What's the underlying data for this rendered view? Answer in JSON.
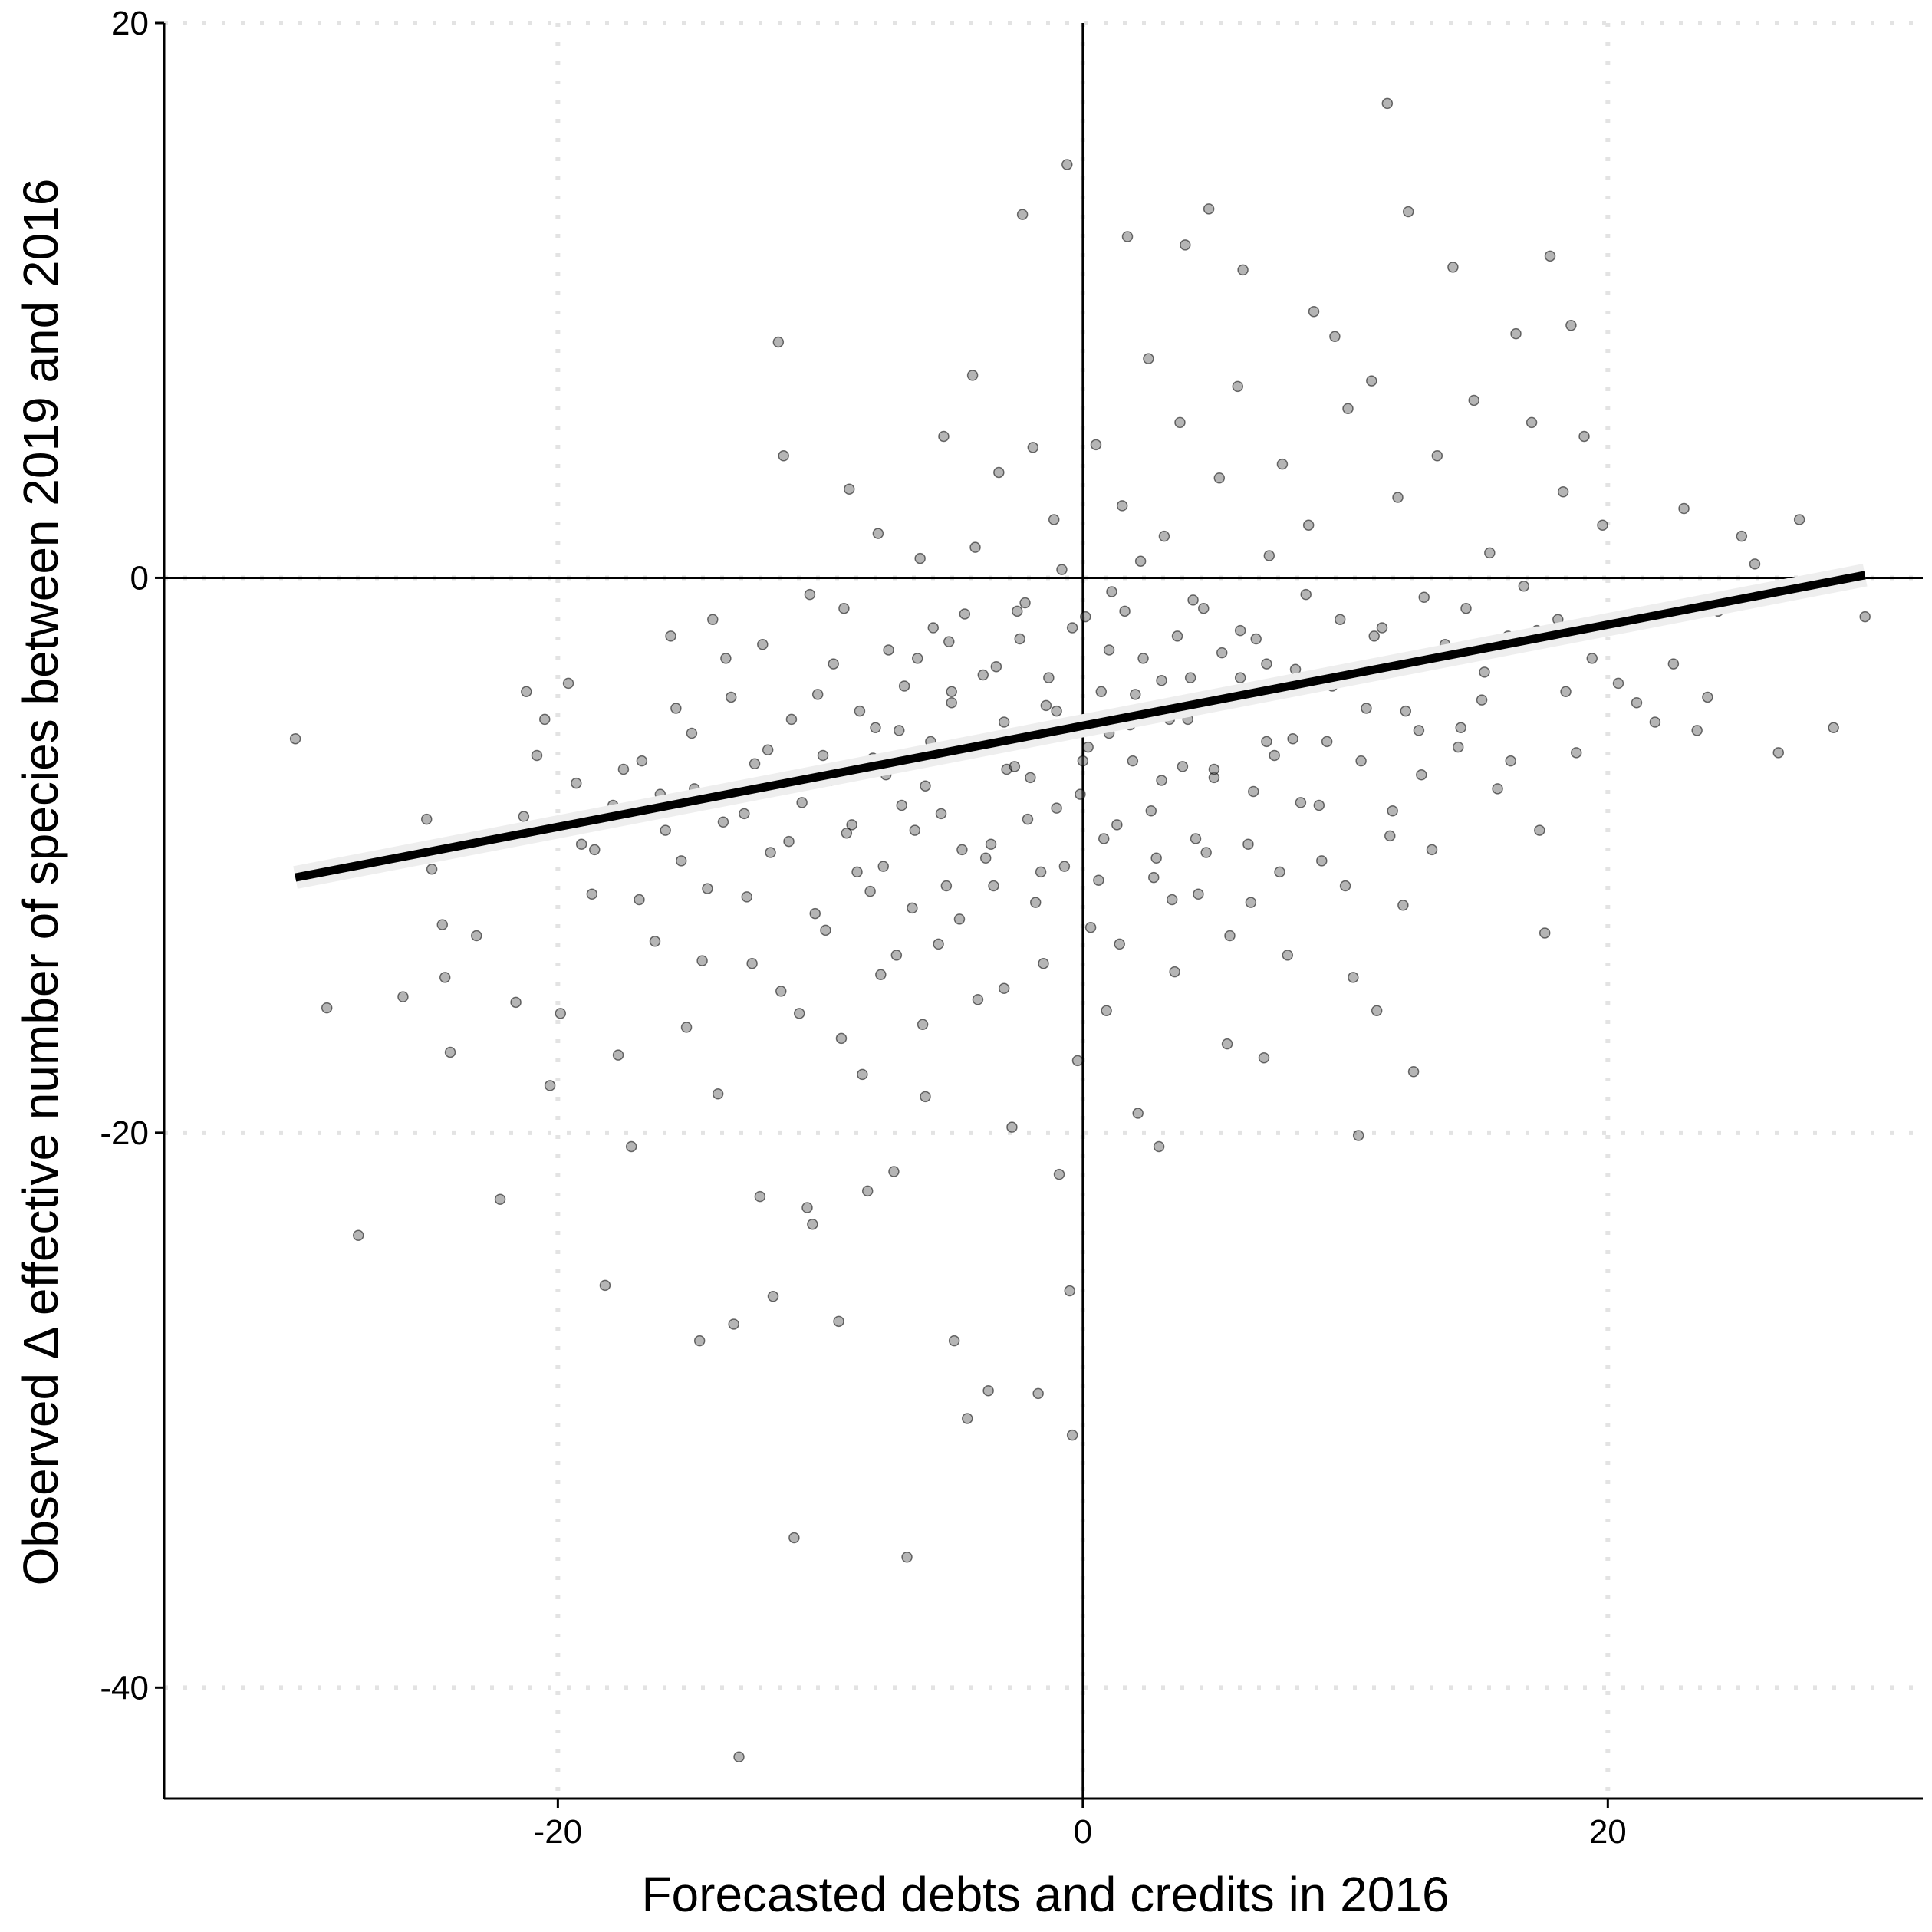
{
  "chart_data": {
    "type": "scatter",
    "xlabel": "Forecasted debts and credits in 2016",
    "ylabel": "Observed Δ effective number of species between 2019 and 2016",
    "xlim": [
      -35,
      32
    ],
    "ylim": [
      -44,
      20
    ],
    "x_ticks": [
      -20,
      0,
      20
    ],
    "y_ticks": [
      20,
      0,
      -20,
      -40
    ],
    "x_tick_labels": [
      "-20",
      "0",
      "20"
    ],
    "y_tick_labels": [
      "20",
      "0",
      "-20",
      "-40"
    ],
    "grid": "dotted major gridlines",
    "reference_lines": {
      "x": 0,
      "y": 0
    },
    "trend_line": {
      "x": [
        -30,
        29.8
      ],
      "y": [
        -10.8,
        0.1
      ]
    },
    "points": [
      [
        -30,
        -5.8
      ],
      [
        -28.8,
        -15.5
      ],
      [
        -27.6,
        -23.7
      ],
      [
        -25.9,
        -15.1
      ],
      [
        -25,
        -8.7
      ],
      [
        -24.8,
        -10.5
      ],
      [
        -24.4,
        -12.5
      ],
      [
        -24.3,
        -14.4
      ],
      [
        -24.1,
        -17.1
      ],
      [
        -23.1,
        -12.9
      ],
      [
        -22.8,
        -9.5
      ],
      [
        -22.2,
        -22.4
      ],
      [
        -21.6,
        -15.3
      ],
      [
        -21.3,
        -8.6
      ],
      [
        -21.2,
        -4.1
      ],
      [
        -20.8,
        -6.4
      ],
      [
        -20.3,
        -18.3
      ],
      [
        -19.9,
        -15.7
      ],
      [
        -19.6,
        -3.8
      ],
      [
        -19.1,
        -9.6
      ],
      [
        -18.7,
        -11.4
      ],
      [
        -18.2,
        -25.5
      ],
      [
        -17.9,
        -8.2
      ],
      [
        -17.7,
        -17.2
      ],
      [
        -17.2,
        -20.5
      ],
      [
        -16.8,
        -6.6
      ],
      [
        -16.3,
        -13.1
      ],
      [
        -15.9,
        -9.1
      ],
      [
        -15.5,
        -4.7
      ],
      [
        -15.1,
        -16.2
      ],
      [
        -14.8,
        -7.6
      ],
      [
        -14.6,
        -27.5
      ],
      [
        -14.3,
        -11.2
      ],
      [
        -13.9,
        -18.6
      ],
      [
        -13.6,
        -2.9
      ],
      [
        -13.3,
        -26.9
      ],
      [
        -13.1,
        -42.5
      ],
      [
        -12.9,
        -8.5
      ],
      [
        -12.6,
        -13.9
      ],
      [
        -12.3,
        -22.3
      ],
      [
        -12,
        -6.2
      ],
      [
        -11.8,
        -25.9
      ],
      [
        -11.6,
        8.5
      ],
      [
        -11.4,
        4.4
      ],
      [
        -11.2,
        -9.5
      ],
      [
        -11,
        -34.6
      ],
      [
        -10.8,
        -15.7
      ],
      [
        -10.5,
        -22.7
      ],
      [
        -10.3,
        -23.3
      ],
      [
        -10.1,
        -4.2
      ],
      [
        -9.8,
        -12.7
      ],
      [
        -9.6,
        -7.3
      ],
      [
        -9.3,
        -26.8
      ],
      [
        -9.1,
        -1.1
      ],
      [
        -8.9,
        3.2
      ],
      [
        -8.6,
        -10.6
      ],
      [
        -8.4,
        -17.9
      ],
      [
        -8.2,
        -22.1
      ],
      [
        -7.9,
        -5.4
      ],
      [
        -7.7,
        -14.3
      ],
      [
        -7.4,
        -2.6
      ],
      [
        -7.2,
        -21.4
      ],
      [
        -6.9,
        -8.2
      ],
      [
        -6.7,
        -35.3
      ],
      [
        -6.5,
        -11.9
      ],
      [
        -6.2,
        0.7
      ],
      [
        -6,
        -18.7
      ],
      [
        -5.8,
        -5.9
      ],
      [
        -5.5,
        -13.2
      ],
      [
        -5.3,
        5.1
      ],
      [
        -5.1,
        -2.3
      ],
      [
        -4.9,
        -27.5
      ],
      [
        -4.6,
        -9.8
      ],
      [
        -4.4,
        -30.3
      ],
      [
        -4.2,
        7.3
      ],
      [
        -4,
        -15.2
      ],
      [
        -3.8,
        -3.5
      ],
      [
        -3.6,
        -29.3
      ],
      [
        -3.4,
        -11.1
      ],
      [
        -3.2,
        3.8
      ],
      [
        -2.9,
        -6.9
      ],
      [
        -2.7,
        -19.8
      ],
      [
        -2.5,
        -1.2
      ],
      [
        -2.3,
        13.1
      ],
      [
        -2.1,
        -8.7
      ],
      [
        -1.9,
        4.7
      ],
      [
        -1.7,
        -29.4
      ],
      [
        -1.5,
        -13.9
      ],
      [
        -1.3,
        -3.6
      ],
      [
        -1.1,
        2.1
      ],
      [
        -0.9,
        -21.5
      ],
      [
        -0.7,
        -10.4
      ],
      [
        -0.6,
        14.9
      ],
      [
        -0.5,
        -25.7
      ],
      [
        -0.4,
        -30.9
      ],
      [
        -0.3,
        -5.2
      ],
      [
        -0.2,
        -17.4
      ],
      [
        -0.1,
        -7.8
      ],
      [
        0.1,
        -1.4
      ],
      [
        0.3,
        -12.6
      ],
      [
        0.5,
        4.8
      ],
      [
        0.7,
        -4.1
      ],
      [
        0.9,
        -15.6
      ],
      [
        1.1,
        -0.5
      ],
      [
        1.3,
        -8.9
      ],
      [
        1.5,
        2.6
      ],
      [
        1.7,
        12.3
      ],
      [
        1.9,
        -6.6
      ],
      [
        2.1,
        -19.3
      ],
      [
        2.3,
        -2.9
      ],
      [
        2.5,
        7.9
      ],
      [
        2.7,
        -10.8
      ],
      [
        2.9,
        -20.5
      ],
      [
        3.1,
        1.5
      ],
      [
        3.3,
        -5.1
      ],
      [
        3.5,
        -14.2
      ],
      [
        3.7,
        5.6
      ],
      [
        3.9,
        12
      ],
      [
        4.1,
        -3.6
      ],
      [
        4.3,
        -9.4
      ],
      [
        4.6,
        -1.1
      ],
      [
        4.8,
        13.3
      ],
      [
        5,
        -7.2
      ],
      [
        5.2,
        3.6
      ],
      [
        5.5,
        -16.8
      ],
      [
        5.7,
        -4.4
      ],
      [
        5.9,
        6.9
      ],
      [
        6.1,
        11.1
      ],
      [
        6.4,
        -11.7
      ],
      [
        6.6,
        -2.2
      ],
      [
        6.9,
        -17.3
      ],
      [
        7.1,
        0.8
      ],
      [
        7.3,
        -6.4
      ],
      [
        7.6,
        4.1
      ],
      [
        7.8,
        -13.6
      ],
      [
        8.1,
        -3.3
      ],
      [
        8.3,
        -8.1
      ],
      [
        8.6,
        1.9
      ],
      [
        8.8,
        9.6
      ],
      [
        9.1,
        -10.2
      ],
      [
        9.3,
        -5.9
      ],
      [
        9.6,
        8.7
      ],
      [
        9.8,
        -1.5
      ],
      [
        10.1,
        6.1
      ],
      [
        10.3,
        -14.4
      ],
      [
        10.5,
        -20.1
      ],
      [
        10.8,
        -4.7
      ],
      [
        11,
        7.1
      ],
      [
        11.2,
        -15.6
      ],
      [
        11.4,
        -1.8
      ],
      [
        11.6,
        17.1
      ],
      [
        11.8,
        -8.4
      ],
      [
        12,
        2.9
      ],
      [
        12.2,
        -11.8
      ],
      [
        12.4,
        13.2
      ],
      [
        12.6,
        -17.8
      ],
      [
        12.8,
        -5.5
      ],
      [
        13,
        -0.7
      ],
      [
        13.3,
        -9.8
      ],
      [
        13.5,
        4.4
      ],
      [
        13.8,
        -2.4
      ],
      [
        14.1,
        11.2
      ],
      [
        14.3,
        -6.1
      ],
      [
        14.6,
        -1.1
      ],
      [
        14.9,
        6.4
      ],
      [
        15.2,
        -4.4
      ],
      [
        15.5,
        0.9
      ],
      [
        15.8,
        -7.6
      ],
      [
        16.2,
        -2.1
      ],
      [
        16.5,
        8.8
      ],
      [
        16.8,
        -0.3
      ],
      [
        17.1,
        5.6
      ],
      [
        17.4,
        -9.1
      ],
      [
        17.6,
        -12.8
      ],
      [
        17.8,
        11.6
      ],
      [
        18.1,
        -1.5
      ],
      [
        18.3,
        3.1
      ],
      [
        18.6,
        9.1
      ],
      [
        18.8,
        -6.3
      ],
      [
        19.1,
        5.1
      ],
      [
        19.4,
        -2.9
      ],
      [
        19.8,
        1.9
      ],
      [
        20.4,
        -3.8
      ],
      [
        21.1,
        -4.5
      ],
      [
        21.8,
        -5.2
      ],
      [
        22.5,
        -3.1
      ],
      [
        22.9,
        2.5
      ],
      [
        23.4,
        -5.5
      ],
      [
        23.8,
        -4.3
      ],
      [
        24.2,
        -1.2
      ],
      [
        25.1,
        1.5
      ],
      [
        25.6,
        0.5
      ],
      [
        26.5,
        -6.3
      ],
      [
        27.3,
        2.1
      ],
      [
        28.6,
        -5.4
      ],
      [
        29.8,
        -1.4
      ],
      [
        -20.5,
        -5.1
      ],
      [
        -19.3,
        -7.4
      ],
      [
        -18.6,
        -9.8
      ],
      [
        -17.5,
        -6.9
      ],
      [
        -16.9,
        -11.6
      ],
      [
        -16.1,
        -7.8
      ],
      [
        -15.7,
        -2.1
      ],
      [
        -15.3,
        -10.2
      ],
      [
        -14.9,
        -5.6
      ],
      [
        -14.5,
        -13.8
      ],
      [
        -14.1,
        -1.5
      ],
      [
        -13.7,
        -8.8
      ],
      [
        -13.4,
        -4.3
      ],
      [
        -12.8,
        -11.5
      ],
      [
        -12.5,
        -6.7
      ],
      [
        -12.2,
        -2.4
      ],
      [
        -11.9,
        -9.9
      ],
      [
        -11.5,
        -14.9
      ],
      [
        -11.1,
        -5.1
      ],
      [
        -10.7,
        -8.1
      ],
      [
        -10.4,
        -0.6
      ],
      [
        -10.2,
        -12.1
      ],
      [
        -9.9,
        -6.4
      ],
      [
        -9.5,
        -3.1
      ],
      [
        -9.2,
        -16.6
      ],
      [
        -8.8,
        -8.9
      ],
      [
        -8.5,
        -4.8
      ],
      [
        -8.1,
        -11.3
      ],
      [
        -7.8,
        1.6
      ],
      [
        -7.5,
        -7.1
      ],
      [
        -7.1,
        -13.6
      ],
      [
        -6.8,
        -3.9
      ],
      [
        -6.4,
        -9.1
      ],
      [
        -6.1,
        -16.1
      ],
      [
        -5.7,
        -1.8
      ],
      [
        -5.4,
        -8.5
      ],
      [
        -5,
        -4.1
      ],
      [
        -4.7,
        -12.3
      ],
      [
        -4.3,
        -6.2
      ],
      [
        -4.1,
        1.1
      ],
      [
        -3.7,
        -10.1
      ],
      [
        -3.3,
        -3.2
      ],
      [
        -3,
        -14.8
      ],
      [
        -2.6,
        -6.8
      ],
      [
        -2.2,
        -0.9
      ],
      [
        -1.8,
        -11.7
      ],
      [
        -1.4,
        -4.6
      ],
      [
        -1,
        -8.3
      ],
      [
        -0.8,
        0.3
      ],
      [
        0.2,
        -6.1
      ],
      [
        0.6,
        -10.9
      ],
      [
        1,
        -2.6
      ],
      [
        1.4,
        -13.2
      ],
      [
        1.8,
        -5.3
      ],
      [
        2.2,
        0.6
      ],
      [
        2.6,
        -8.4
      ],
      [
        3,
        -3.7
      ],
      [
        3.4,
        -11.6
      ],
      [
        3.8,
        -6.8
      ],
      [
        4.2,
        -0.8
      ],
      [
        4.7,
        -9.9
      ],
      [
        5.1,
        -4.6
      ],
      [
        5.6,
        -12.9
      ],
      [
        6,
        -1.9
      ],
      [
        6.5,
        -7.7
      ],
      [
        7,
        -3.1
      ],
      [
        7.5,
        -10.6
      ],
      [
        8,
        -5.8
      ],
      [
        8.5,
        -0.6
      ],
      [
        9,
        -8.2
      ],
      [
        9.5,
        -3.9
      ],
      [
        10,
        -11.1
      ],
      [
        10.6,
        -6.6
      ],
      [
        11.1,
        -2.1
      ],
      [
        11.7,
        -9.3
      ],
      [
        12.3,
        -4.8
      ],
      [
        12.9,
        -7.1
      ],
      [
        13.6,
        -2.7
      ],
      [
        14.4,
        -5.4
      ],
      [
        15.3,
        -3.4
      ],
      [
        16.3,
        -6.6
      ],
      [
        17.3,
        -1.9
      ],
      [
        18.4,
        -4.1
      ],
      [
        -8,
        -6.5
      ],
      [
        -7,
        -5.5
      ],
      [
        -6,
        -7.5
      ],
      [
        -5,
        -4.5
      ],
      [
        -4,
        -6
      ],
      [
        -3,
        -5.2
      ],
      [
        -2,
        -7.2
      ],
      [
        -1,
        -4.8
      ],
      [
        0,
        -6.6
      ],
      [
        1,
        -5.6
      ],
      [
        2,
        -4.2
      ],
      [
        3,
        -7.3
      ],
      [
        4,
        -5.1
      ],
      [
        5,
        -6.9
      ],
      [
        6,
        -3.6
      ],
      [
        7,
        -5.9
      ],
      [
        -9,
        -9.2
      ],
      [
        -7.6,
        -10.4
      ],
      [
        -6.3,
        -2.9
      ],
      [
        -5.2,
        -11.1
      ],
      [
        -4.5,
        -1.3
      ],
      [
        -3.5,
        -9.6
      ],
      [
        -2.4,
        -2.2
      ],
      [
        -1.6,
        -10.6
      ],
      [
        -0.4,
        -1.8
      ],
      [
        0.8,
        -9.4
      ],
      [
        1.6,
        -1.2
      ],
      [
        2.8,
        -10.1
      ],
      [
        3.6,
        -2.1
      ],
      [
        4.4,
        -11.4
      ],
      [
        5.3,
        -2.7
      ],
      [
        6.3,
        -9.6
      ]
    ]
  }
}
